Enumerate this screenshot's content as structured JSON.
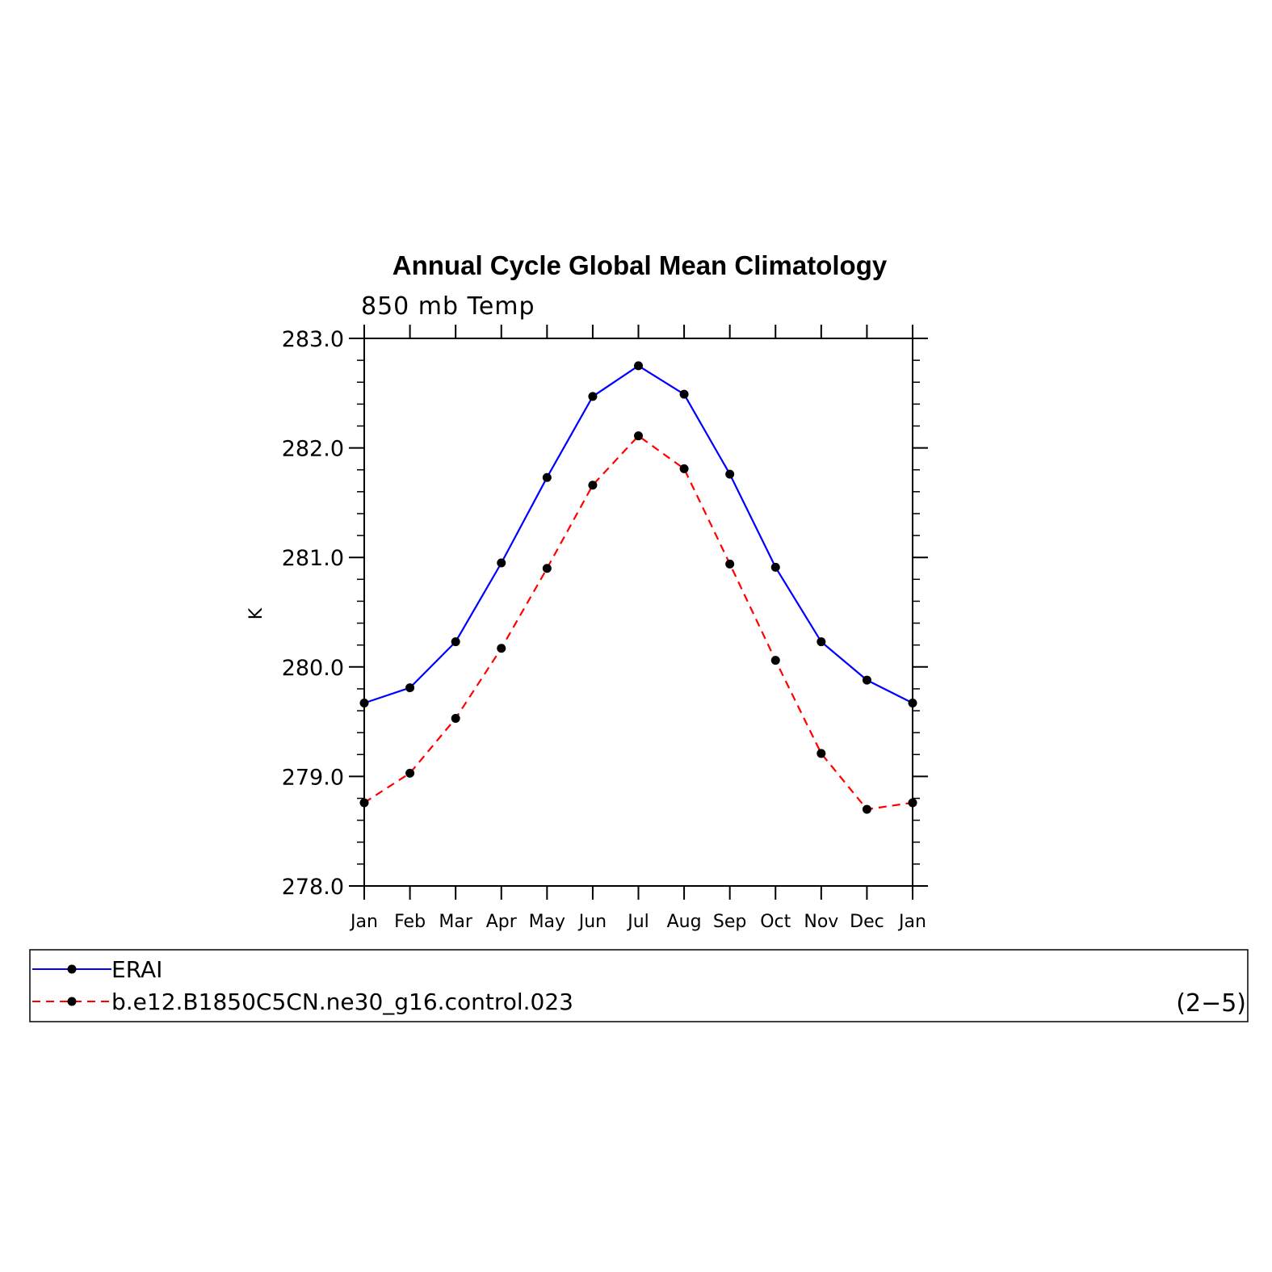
{
  "chart_data": {
    "type": "line",
    "title": "Annual Cycle Global Mean Climatology",
    "subtitle": "850 mb Temp",
    "ylabel": "K",
    "xlabel": "",
    "ylim": [
      278.0,
      283.0
    ],
    "yticks": [
      "278.0",
      "279.0",
      "280.0",
      "281.0",
      "282.0",
      "283.0"
    ],
    "categories": [
      "Jan",
      "Feb",
      "Mar",
      "Apr",
      "May",
      "Jun",
      "Jul",
      "Aug",
      "Sep",
      "Oct",
      "Nov",
      "Dec",
      "Jan"
    ],
    "grid": false,
    "legend_position": "bottom",
    "series": [
      {
        "name": "ERAI",
        "color": "#0000ff",
        "line_style": "solid",
        "marker": "filled-circle",
        "values": [
          279.67,
          279.81,
          280.23,
          280.95,
          281.73,
          282.47,
          282.75,
          282.49,
          281.76,
          280.91,
          280.23,
          279.88,
          279.67
        ]
      },
      {
        "name": "b.e12.B1850C5CN.ne30_g16.control.023",
        "color": "#ff0000",
        "line_style": "dashed",
        "marker": "filled-circle",
        "values": [
          278.76,
          279.03,
          279.53,
          280.17,
          280.9,
          281.66,
          282.11,
          281.81,
          280.94,
          280.06,
          279.21,
          278.7,
          278.76
        ]
      }
    ],
    "panel_label": "(2−5)"
  }
}
